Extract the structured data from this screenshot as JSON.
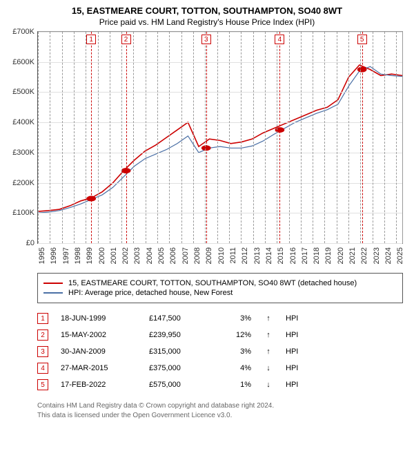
{
  "title": "15, EASTMEARE COURT, TOTTON, SOUTHAMPTON, SO40 8WT",
  "subtitle": "Price paid vs. HM Land Registry's House Price Index (HPI)",
  "chart": {
    "type": "line",
    "background_color": "#ffffff",
    "grid_color": "#e0e0e0",
    "axis_color": "#555555",
    "vgrid_color": "#999999",
    "marker_color": "#cc0000",
    "x_years": [
      1995,
      1996,
      1997,
      1998,
      1999,
      2000,
      2001,
      2002,
      2003,
      2004,
      2005,
      2006,
      2007,
      2008,
      2009,
      2010,
      2011,
      2012,
      2013,
      2014,
      2015,
      2016,
      2017,
      2018,
      2019,
      2020,
      2021,
      2022,
      2023,
      2024,
      2025
    ],
    "xlim": [
      1995,
      2025.5
    ],
    "ylim": [
      0,
      700
    ],
    "yticks": [
      0,
      100,
      200,
      300,
      400,
      500,
      600,
      700
    ],
    "ytick_labels": [
      "£0",
      "£100K",
      "£200K",
      "£300K",
      "£400K",
      "£500K",
      "£600K",
      "£700K"
    ],
    "series": [
      {
        "name": "property",
        "color": "#cc0000",
        "width": 1.6,
        "points_y": [
          105,
          108,
          112,
          124,
          140,
          150,
          170,
          200,
          240,
          275,
          305,
          325,
          350,
          375,
          400,
          320,
          345,
          340,
          330,
          335,
          345,
          365,
          380,
          395,
          410,
          425,
          440,
          450,
          475,
          550,
          590,
          575,
          555,
          560,
          555
        ]
      },
      {
        "name": "hpi",
        "color": "#4a6fa5",
        "width": 1.2,
        "points_y": [
          100,
          103,
          108,
          118,
          130,
          145,
          160,
          185,
          220,
          255,
          280,
          295,
          310,
          330,
          355,
          300,
          315,
          320,
          315,
          315,
          322,
          338,
          360,
          380,
          400,
          415,
          430,
          442,
          460,
          520,
          570,
          585,
          560,
          555,
          552
        ]
      }
    ],
    "sale_markers": [
      {
        "num": "1",
        "year": 1999.46,
        "value": 147.5
      },
      {
        "num": "2",
        "year": 2002.37,
        "value": 239.95
      },
      {
        "num": "3",
        "year": 2009.08,
        "value": 315
      },
      {
        "num": "4",
        "year": 2015.24,
        "value": 375
      },
      {
        "num": "5",
        "year": 2022.13,
        "value": 575
      }
    ],
    "title_fontsize": 13,
    "label_fontsize": 11
  },
  "legend": {
    "items": [
      {
        "color": "#cc0000",
        "label": "15, EASTMEARE COURT, TOTTON, SOUTHAMPTON, SO40 8WT (detached house)"
      },
      {
        "color": "#4a6fa5",
        "label": "HPI: Average price, detached house, New Forest"
      }
    ]
  },
  "sales": [
    {
      "num": "1",
      "date": "18-JUN-1999",
      "price": "£147,500",
      "pct": "3%",
      "arrow": "↑",
      "tag": "HPI"
    },
    {
      "num": "2",
      "date": "15-MAY-2002",
      "price": "£239,950",
      "pct": "12%",
      "arrow": "↑",
      "tag": "HPI"
    },
    {
      "num": "3",
      "date": "30-JAN-2009",
      "price": "£315,000",
      "pct": "3%",
      "arrow": "↑",
      "tag": "HPI"
    },
    {
      "num": "4",
      "date": "27-MAR-2015",
      "price": "£375,000",
      "pct": "4%",
      "arrow": "↓",
      "tag": "HPI"
    },
    {
      "num": "5",
      "date": "17-FEB-2022",
      "price": "£575,000",
      "pct": "1%",
      "arrow": "↓",
      "tag": "HPI"
    }
  ],
  "footer": {
    "line1": "Contains HM Land Registry data © Crown copyright and database right 2024.",
    "line2": "This data is licensed under the Open Government Licence v3.0."
  }
}
